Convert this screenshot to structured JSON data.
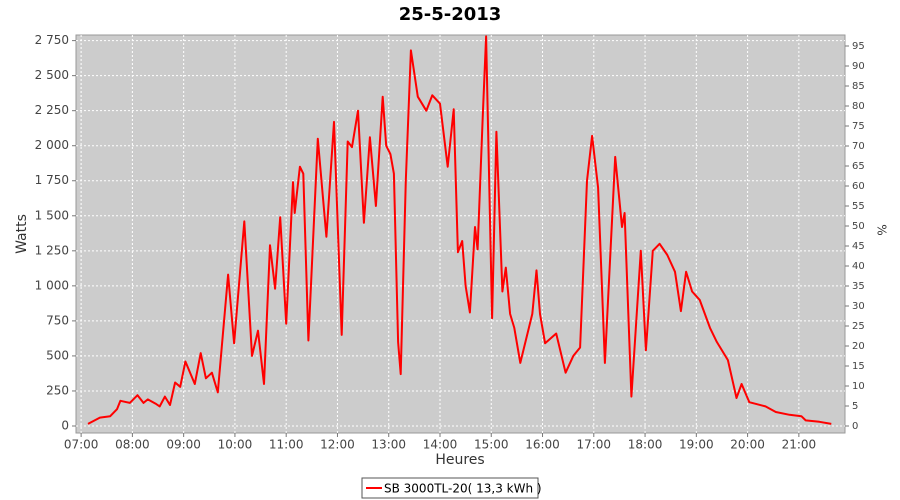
{
  "chart_data": {
    "type": "line",
    "title": "25-5-2013",
    "x_label": "Heures",
    "y_label": "Watts",
    "y2_label": "%",
    "x": [
      "07:08",
      "07:22",
      "07:34",
      "07:42",
      "07:46",
      "07:57",
      "08:06",
      "08:13",
      "08:18",
      "08:27",
      "08:32",
      "08:38",
      "08:44",
      "08:50",
      "08:56",
      "09:02",
      "09:13",
      "09:20",
      "09:26",
      "09:33",
      "09:40",
      "09:52",
      "09:59",
      "10:11",
      "10:20",
      "10:27",
      "10:34",
      "10:41",
      "10:47",
      "10:53",
      "11:00",
      "11:08",
      "11:10",
      "11:16",
      "11:20",
      "11:26",
      "11:37",
      "11:47",
      "11:56",
      "12:05",
      "12:12",
      "12:17",
      "12:24",
      "12:31",
      "12:38",
      "12:45",
      "12:53",
      "12:57",
      "13:02",
      "13:06",
      "13:11",
      "13:14",
      "13:20",
      "13:26",
      "13:34",
      "13:44",
      "13:51",
      "14:00",
      "14:09",
      "14:16",
      "14:21",
      "14:26",
      "14:30",
      "14:35",
      "14:41",
      "14:44",
      "14:50",
      "14:54",
      "15:01",
      "15:06",
      "15:13",
      "15:17",
      "15:22",
      "15:27",
      "15:34",
      "15:48",
      "15:53",
      "15:57",
      "16:03",
      "16:16",
      "16:27",
      "16:36",
      "16:44",
      "16:52",
      "16:58",
      "17:05",
      "17:13",
      "17:25",
      "17:33",
      "17:36",
      "17:44",
      "17:55",
      "18:01",
      "18:09",
      "18:17",
      "18:26",
      "18:35",
      "18:42",
      "18:48",
      "18:55",
      "19:04",
      "19:16",
      "19:24",
      "19:37",
      "19:47",
      "19:53",
      "20:02",
      "20:21",
      "20:33",
      "20:49",
      "21:03",
      "21:08",
      "21:24",
      "21:38"
    ],
    "series": [
      {
        "name": "SB 3000TL-20( 13,3 kWh )",
        "color": "#ff0000",
        "values": [
          15,
          60,
          70,
          120,
          180,
          165,
          220,
          165,
          190,
          160,
          140,
          210,
          150,
          310,
          280,
          460,
          300,
          520,
          340,
          380,
          240,
          1080,
          590,
          1460,
          500,
          680,
          300,
          1290,
          980,
          1490,
          730,
          1740,
          1520,
          1850,
          1800,
          610,
          2050,
          1350,
          2170,
          650,
          2030,
          1990,
          2250,
          1450,
          2060,
          1570,
          2350,
          2000,
          1940,
          1800,
          600,
          370,
          1750,
          2680,
          2350,
          2250,
          2360,
          2300,
          1850,
          2260,
          1240,
          1320,
          1000,
          810,
          1420,
          1260,
          2200,
          2780,
          770,
          2100,
          960,
          1130,
          800,
          700,
          450,
          800,
          1110,
          800,
          590,
          660,
          380,
          500,
          560,
          1750,
          2070,
          1700,
          450,
          1920,
          1420,
          1520,
          210,
          1250,
          540,
          1250,
          1300,
          1220,
          1100,
          820,
          1100,
          960,
          900,
          700,
          600,
          470,
          200,
          300,
          170,
          140,
          100,
          80,
          70,
          40,
          30,
          15
        ]
      }
    ],
    "xlim": [
      "06:54",
      "21:54"
    ],
    "xticks": [
      "07:00",
      "08:00",
      "09:00",
      "10:00",
      "11:00",
      "12:00",
      "13:00",
      "14:00",
      "15:00",
      "16:00",
      "17:00",
      "18:00",
      "19:00",
      "20:00",
      "21:00"
    ],
    "ylim": [
      -50,
      2790
    ],
    "yticks": [
      0,
      250,
      500,
      750,
      {
        "value": 1000,
        "label": "1 000"
      },
      {
        "value": 1250,
        "label": "1 250"
      },
      {
        "value": 1500,
        "label": "1 500"
      },
      {
        "value": 1750,
        "label": "1 750"
      },
      {
        "value": 2000,
        "label": "2 000"
      },
      {
        "value": 2250,
        "label": "2 250"
      },
      {
        "value": 2500,
        "label": "2 500"
      },
      {
        "value": 2750,
        "label": "2 750"
      }
    ],
    "y2lim": [
      -1.75,
      97.75
    ],
    "y2ticks": [
      0,
      5,
      10,
      15,
      20,
      25,
      30,
      35,
      40,
      45,
      50,
      55,
      60,
      65,
      70,
      75,
      80,
      85,
      90,
      95
    ],
    "grid": true
  }
}
